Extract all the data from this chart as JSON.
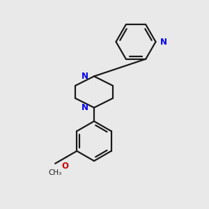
{
  "bg_color": "#e9e9e9",
  "bond_color": "#1a1a1a",
  "N_color": "#0000ee",
  "O_color": "#cc0000",
  "line_width": 1.6,
  "font_size_N": 8.5,
  "font_size_O": 8.5,
  "font_size_Me": 7.5,
  "xlim": [
    0,
    10
  ],
  "ylim": [
    0,
    10
  ]
}
